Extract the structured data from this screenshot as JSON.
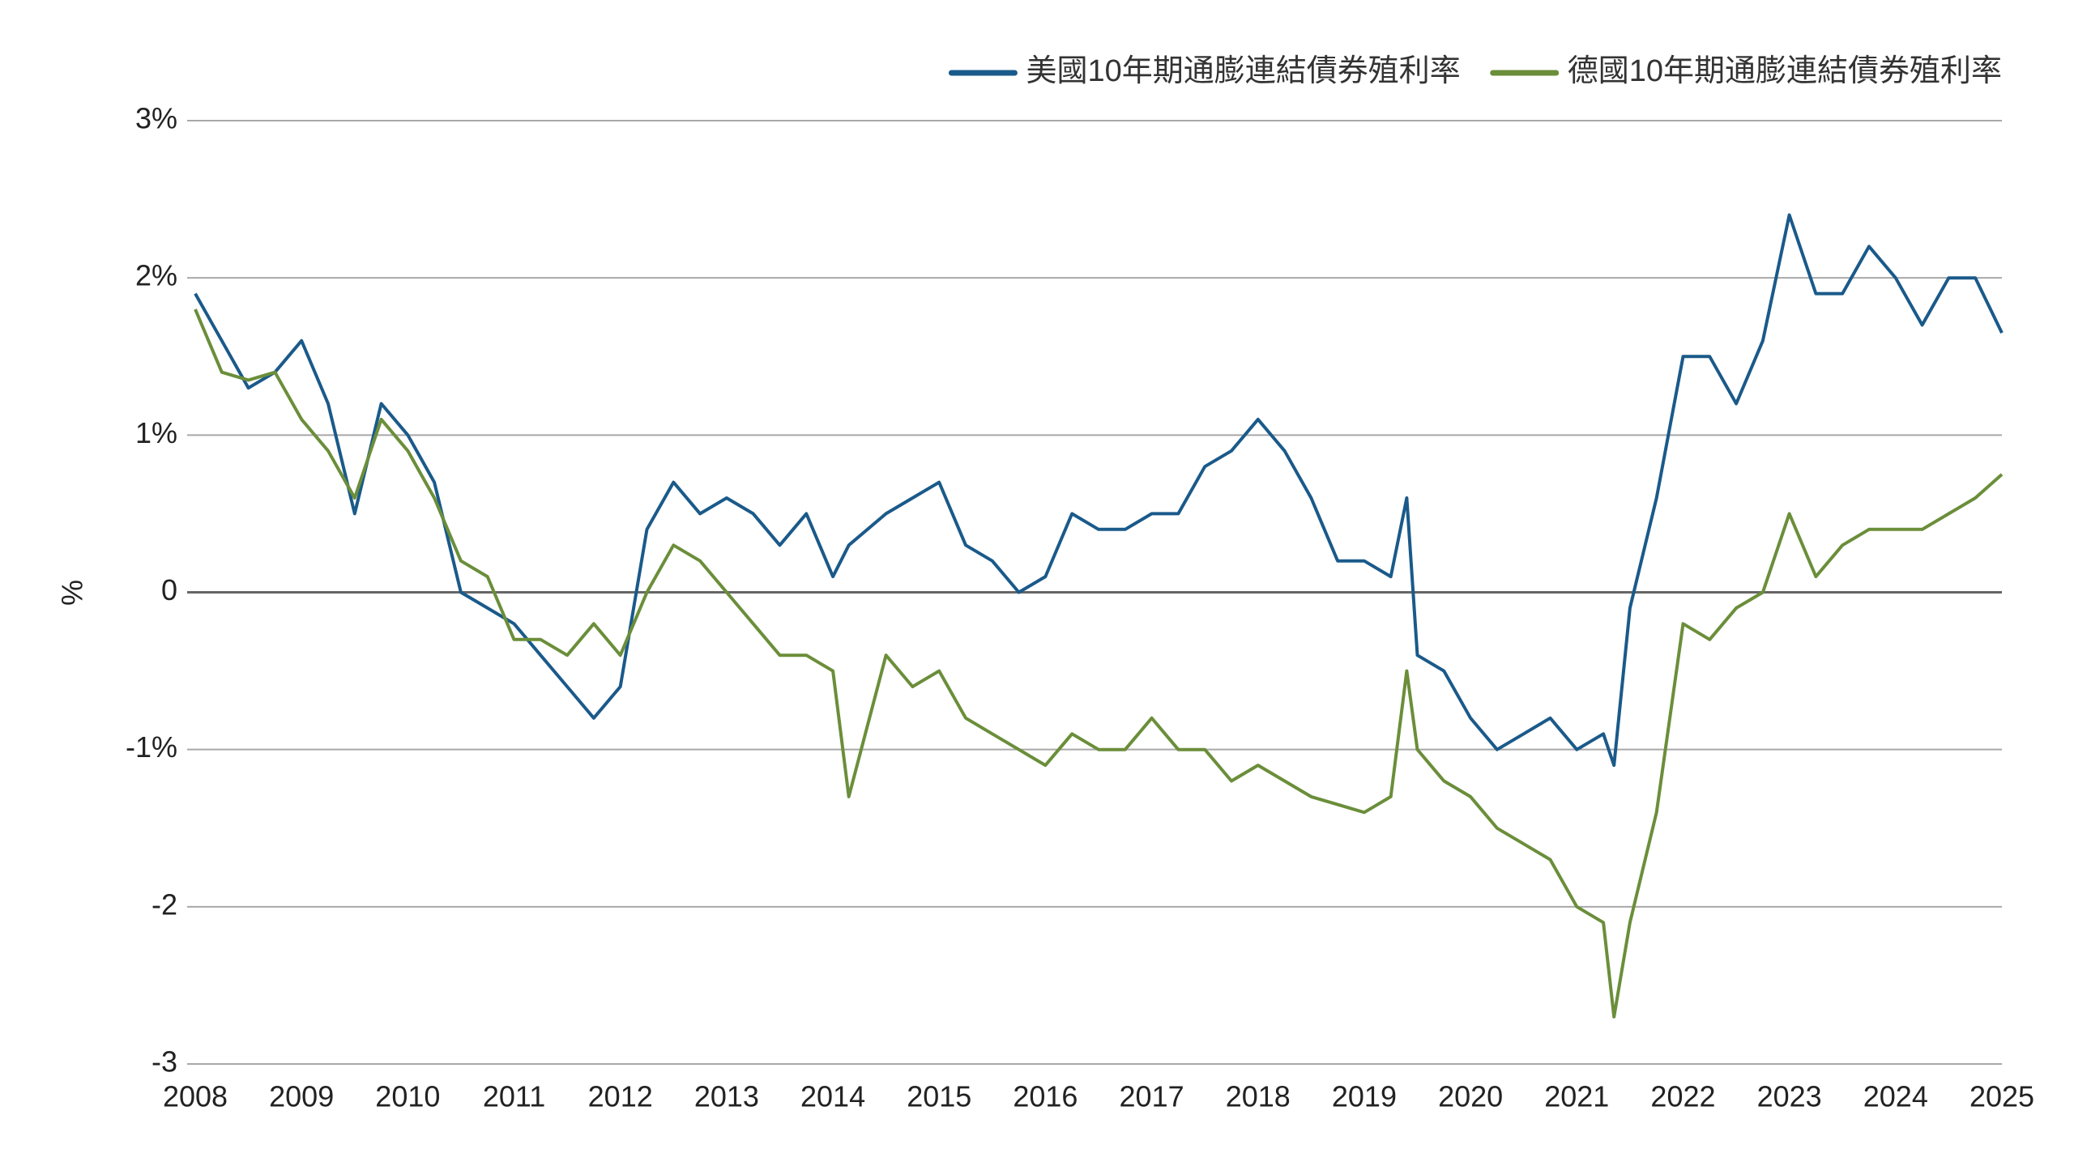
{
  "chart_data": {
    "type": "line",
    "y_label": "%",
    "x": [
      2008,
      2008.25,
      2008.5,
      2008.75,
      2009,
      2009.25,
      2009.5,
      2009.75,
      2010,
      2010.25,
      2010.5,
      2010.75,
      2011,
      2011.25,
      2011.5,
      2011.75,
      2012,
      2012.25,
      2012.5,
      2012.75,
      2013,
      2013.25,
      2013.5,
      2013.75,
      2014,
      2014.15,
      2014.5,
      2014.75,
      2015,
      2015.25,
      2015.5,
      2015.75,
      2016,
      2016.25,
      2016.5,
      2016.75,
      2017,
      2017.25,
      2017.5,
      2017.75,
      2018,
      2018.25,
      2018.5,
      2018.75,
      2019,
      2019.25,
      2019.4,
      2019.5,
      2019.75,
      2020,
      2020.25,
      2020.5,
      2020.75,
      2021,
      2021.25,
      2021.35,
      2021.5,
      2021.75,
      2022,
      2022.25,
      2022.5,
      2022.75,
      2023,
      2023.25,
      2023.5,
      2023.75,
      2024,
      2024.25,
      2024.5,
      2024.75,
      2025
    ],
    "series": [
      {
        "name": "美國10年期通膨連結債券殖利率",
        "color": "#1a5a8a",
        "values": [
          1.9,
          1.6,
          1.3,
          1.4,
          1.6,
          1.2,
          0.5,
          1.2,
          1.0,
          0.7,
          0.0,
          -0.1,
          -0.2,
          -0.4,
          -0.6,
          -0.8,
          -0.6,
          0.4,
          0.7,
          0.5,
          0.6,
          0.5,
          0.3,
          0.5,
          0.1,
          0.3,
          0.5,
          0.6,
          0.7,
          0.3,
          0.2,
          0.0,
          0.1,
          0.5,
          0.4,
          0.4,
          0.5,
          0.5,
          0.8,
          0.9,
          1.1,
          0.9,
          0.6,
          0.2,
          0.2,
          0.1,
          0.6,
          -0.4,
          -0.5,
          -0.8,
          -1.0,
          -0.9,
          -0.8,
          -1.0,
          -0.9,
          -1.1,
          -0.1,
          0.6,
          1.5,
          1.5,
          1.2,
          1.6,
          2.4,
          1.9,
          1.9,
          2.2,
          2.0,
          1.7,
          2.0,
          2.0,
          1.65
        ]
      },
      {
        "name": "德國10年期通膨連結債券殖利率",
        "color": "#6b8e3a",
        "values": [
          1.8,
          1.4,
          1.35,
          1.4,
          1.1,
          0.9,
          0.6,
          1.1,
          0.9,
          0.6,
          0.2,
          0.1,
          -0.3,
          -0.3,
          -0.4,
          -0.2,
          -0.4,
          0.0,
          0.3,
          0.2,
          0.0,
          -0.2,
          -0.4,
          -0.4,
          -0.5,
          -1.3,
          -0.4,
          -0.6,
          -0.5,
          -0.8,
          -0.9,
          -1.0,
          -1.1,
          -0.9,
          -1.0,
          -1.0,
          -0.8,
          -1.0,
          -1.0,
          -1.2,
          -1.1,
          -1.2,
          -1.3,
          -1.35,
          -1.4,
          -1.3,
          -0.5,
          -1.0,
          -1.2,
          -1.3,
          -1.5,
          -1.6,
          -1.7,
          -2.0,
          -2.1,
          -2.7,
          -2.1,
          -1.4,
          -0.2,
          -0.3,
          -0.1,
          0.0,
          0.5,
          0.1,
          0.3,
          0.4,
          0.4,
          0.4,
          0.5,
          0.6,
          0.75
        ]
      }
    ],
    "xlim": [
      2008,
      2025
    ],
    "xticks": [
      2008,
      2009,
      2010,
      2011,
      2012,
      2013,
      2014,
      2015,
      2016,
      2017,
      2018,
      2019,
      2020,
      2021,
      2022,
      2023,
      2024,
      2025
    ],
    "ylim": [
      -3,
      3
    ],
    "yticks": [
      {
        "value": 3,
        "label": "3%"
      },
      {
        "value": 2,
        "label": "2%"
      },
      {
        "value": 1,
        "label": "1%"
      },
      0,
      {
        "value": -1,
        "label": "-1%"
      },
      -2,
      -3
    ],
    "grid": true,
    "legend": "top-right"
  }
}
